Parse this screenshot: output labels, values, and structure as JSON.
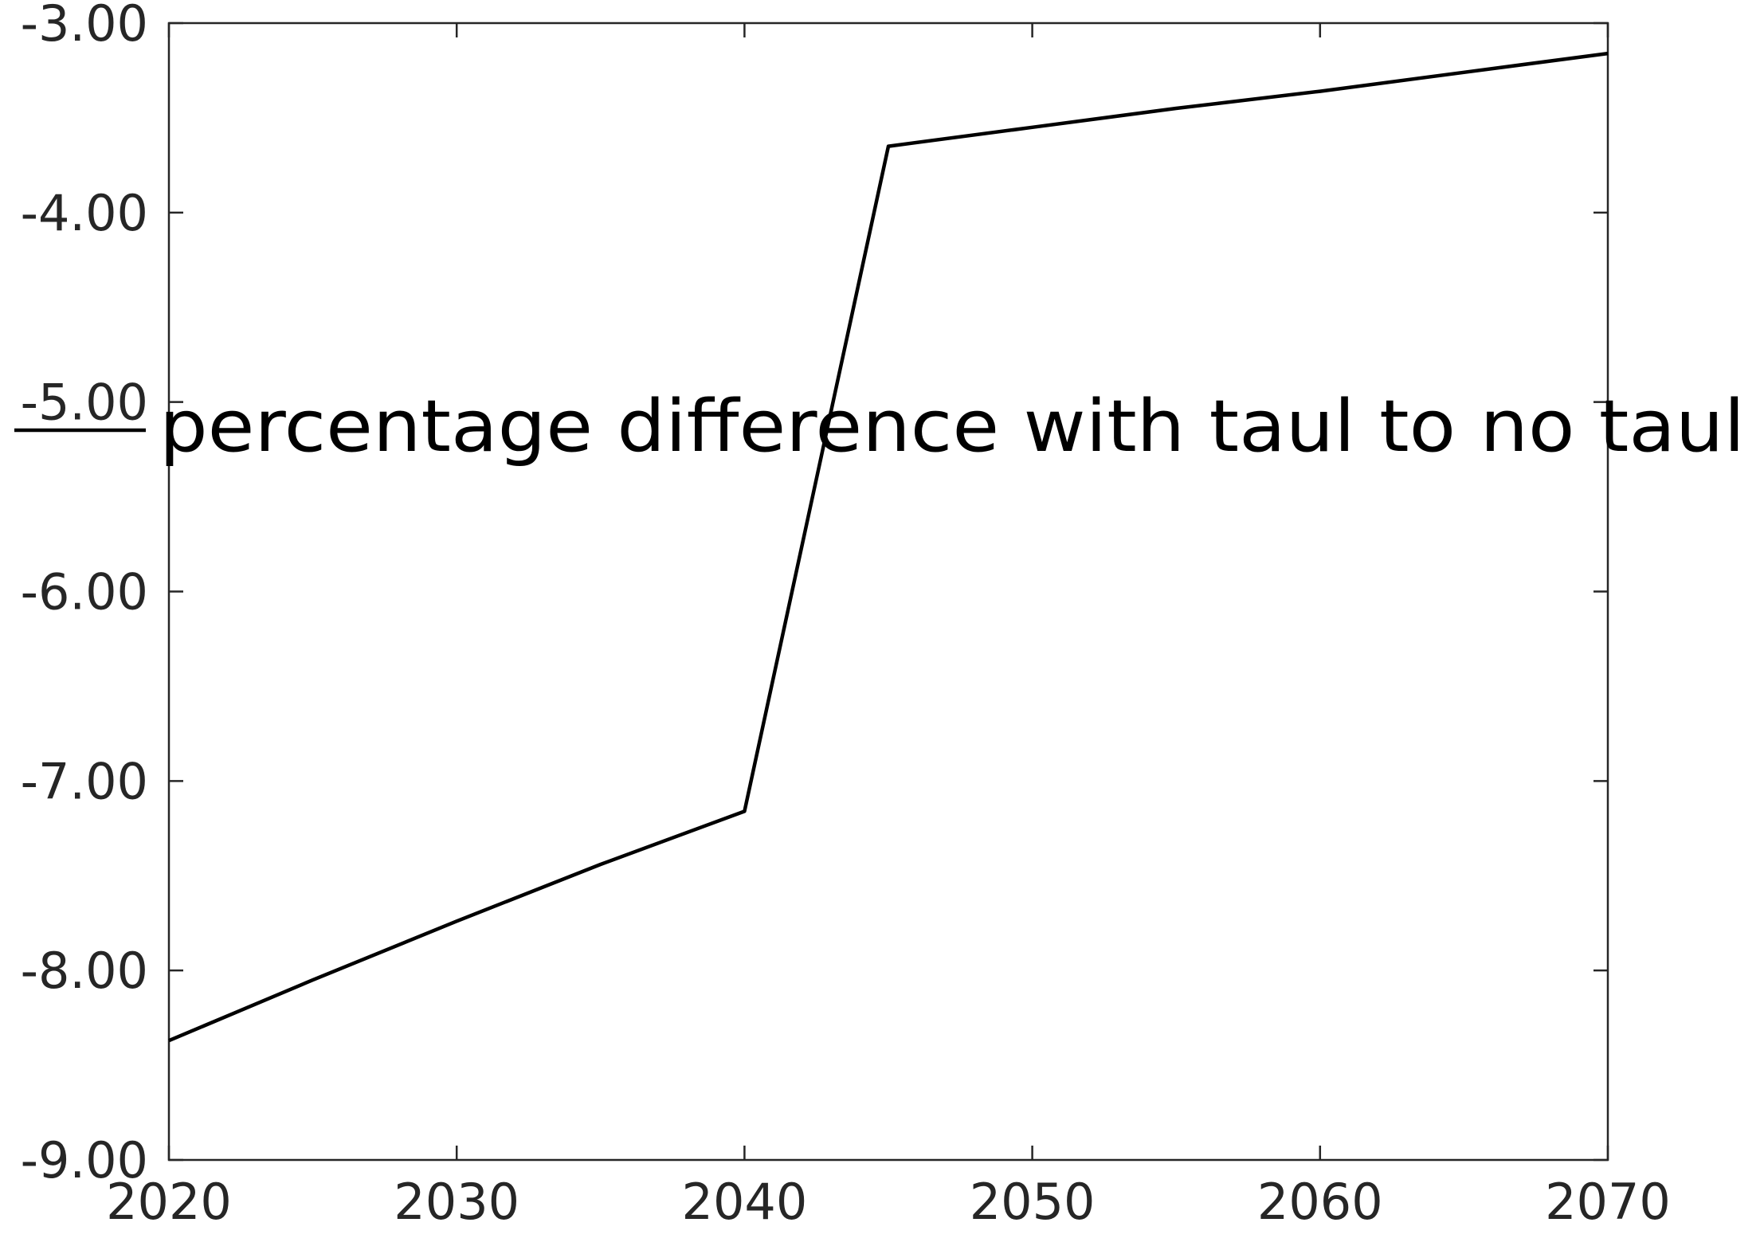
{
  "chart_data": {
    "type": "line",
    "title": "",
    "xlabel": "",
    "ylabel": "",
    "xlim": [
      2020,
      2070
    ],
    "ylim": [
      -9,
      -3
    ],
    "x_ticks": [
      2020,
      2030,
      2040,
      2050,
      2060,
      2070
    ],
    "x_tick_labels": [
      "2020",
      "2030",
      "2040",
      "2050",
      "2060",
      "2070"
    ],
    "y_ticks": [
      -9,
      -8,
      -7,
      -6,
      -5,
      -4,
      -3
    ],
    "y_tick_labels": [
      "-9.00",
      "-8.00",
      "-7.00",
      "-6.00",
      "-5.00",
      "-4.00",
      "-3.00"
    ],
    "grid": false,
    "legend": {
      "placement": "middle-left",
      "entries": [
        "percentage difference with taul to no taul"
      ]
    },
    "series": [
      {
        "name": "percentage difference with taul to no taul",
        "color": "#000000",
        "x": [
          2020,
          2025,
          2030,
          2035,
          2040,
          2045,
          2050,
          2055,
          2060,
          2065,
          2070
        ],
        "y": [
          -8.37,
          -8.05,
          -7.74,
          -7.44,
          -7.16,
          -3.65,
          -3.55,
          -3.45,
          -3.36,
          -3.26,
          -3.16
        ]
      }
    ]
  }
}
